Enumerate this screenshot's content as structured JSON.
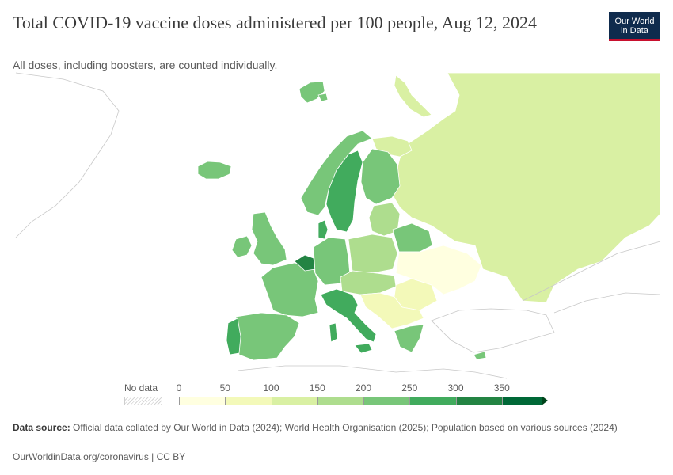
{
  "header": {
    "title": "Total COVID-19 vaccine doses administered per 100 people, Aug 12, 2024",
    "subtitle": "All doses, including boosters, are counted individually.",
    "logo_line1": "Our World",
    "logo_line2": "in Data"
  },
  "legend": {
    "no_data_label": "No data",
    "tick_labels": [
      "0",
      "50",
      "100",
      "150",
      "200",
      "250",
      "300",
      "350"
    ],
    "bins": [
      {
        "range": "0-50",
        "color": "#ffffe0"
      },
      {
        "range": "50-100",
        "color": "#f3f9b9"
      },
      {
        "range": "100-150",
        "color": "#d9f0a3"
      },
      {
        "range": "150-200",
        "color": "#aedd8e"
      },
      {
        "range": "200-250",
        "color": "#78c679"
      },
      {
        "range": "250-300",
        "color": "#41ab5d"
      },
      {
        "range": "300-350",
        "color": "#238443"
      },
      {
        "range": "350+",
        "color": "#006837"
      }
    ]
  },
  "footer": {
    "source_label": "Data source:",
    "source_text": " Official data collated by Our World in Data (2024); World Health Organisation (2025); Population based on various sources (2024)",
    "link_text": "OurWorldinData.org/coronavirus | CC BY"
  },
  "map_regions": [
    {
      "name": "russia",
      "color": "#d9f0a3"
    },
    {
      "name": "iceland",
      "color": "#78c679"
    },
    {
      "name": "norway",
      "color": "#78c679"
    },
    {
      "name": "sweden",
      "color": "#41ab5d"
    },
    {
      "name": "finland",
      "color": "#78c679"
    },
    {
      "name": "ireland",
      "color": "#78c679"
    },
    {
      "name": "united-kingdom",
      "color": "#78c679"
    },
    {
      "name": "denmark",
      "color": "#41ab5d"
    },
    {
      "name": "germany",
      "color": "#78c679"
    },
    {
      "name": "poland",
      "color": "#aedd8e"
    },
    {
      "name": "belarus",
      "color": "#78c679"
    },
    {
      "name": "baltics",
      "color": "#aedd8e"
    },
    {
      "name": "ukraine",
      "color": "#ffffe0"
    },
    {
      "name": "france",
      "color": "#78c679"
    },
    {
      "name": "benelux",
      "color": "#238443"
    },
    {
      "name": "spain",
      "color": "#78c679"
    },
    {
      "name": "portugal",
      "color": "#41ab5d"
    },
    {
      "name": "italy",
      "color": "#41ab5d"
    },
    {
      "name": "central-europe",
      "color": "#aedd8e"
    },
    {
      "name": "balkans",
      "color": "#f3f9b9"
    },
    {
      "name": "romania",
      "color": "#f3f9b9"
    },
    {
      "name": "greece",
      "color": "#78c679"
    },
    {
      "name": "cyprus",
      "color": "#78c679"
    },
    {
      "name": "svalbard",
      "color": "#78c679"
    }
  ]
}
